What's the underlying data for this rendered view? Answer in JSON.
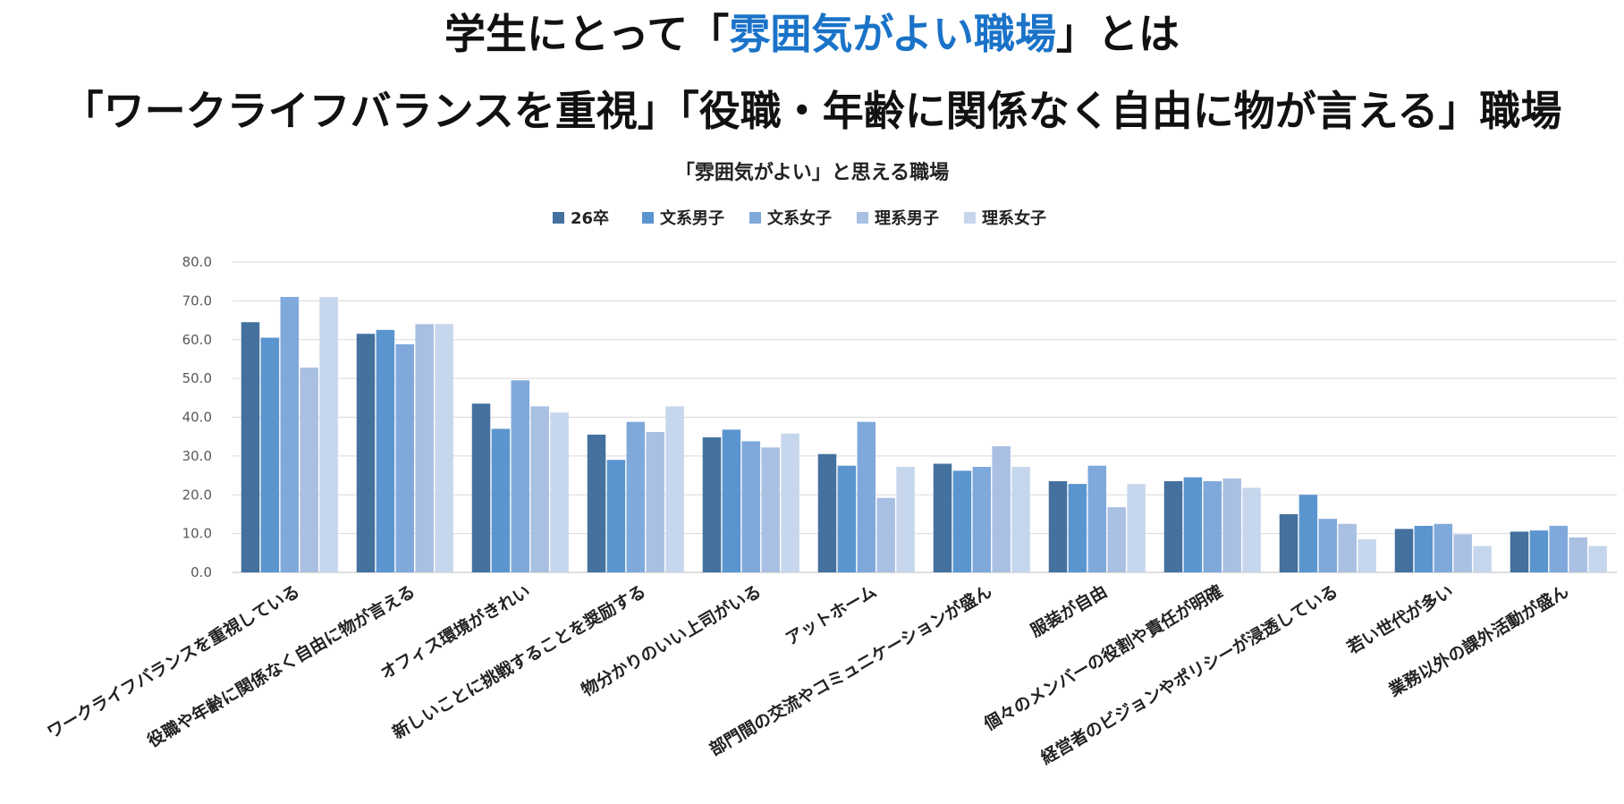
{
  "headline": {
    "line1_prefix": "学生にとって「",
    "line1_accent": "雰囲気がよい職場",
    "line1_suffix": "」とは",
    "line2": "「ワークライフバランスを重視」「役職・年齢に関係なく自由に物が言える」職場",
    "accent_color": "#1a73c8"
  },
  "chart_data": {
    "type": "bar",
    "title": "「雰囲気がよい」と思える職場",
    "ylim": [
      0,
      80
    ],
    "yticks": [
      "0.0",
      "10.0",
      "20.0",
      "30.0",
      "40.0",
      "50.0",
      "60.0",
      "70.0",
      "80.0"
    ],
    "grid": true,
    "legend_position": "top-center",
    "categories": [
      "ワークライフバランスを重視している",
      "役職や年齢に関係なく自由に物が言える",
      "オフィス環境がきれい",
      "新しいことに挑戦することを奨励する",
      "物分かりのいい上司がいる",
      "アットホーム",
      "部門間の交流やコミュニケーションが盛ん",
      "服装が自由",
      "個々のメンバーの役割や責任が明確",
      "経営者のビジョンやポリシーが浸透している",
      "若い世代が多い",
      "業務以外の課外活動が盛ん"
    ],
    "series": [
      {
        "name": "26卒",
        "color": "#44719e",
        "values": [
          64.5,
          61.5,
          43.5,
          35.5,
          34.8,
          30.5,
          28.0,
          23.5,
          23.5,
          15.0,
          11.2,
          10.5
        ]
      },
      {
        "name": "文系男子",
        "color": "#5b95cf",
        "values": [
          60.5,
          62.5,
          37.0,
          29.0,
          36.8,
          27.5,
          26.2,
          22.8,
          24.5,
          20.0,
          12.0,
          10.8
        ]
      },
      {
        "name": "文系女子",
        "color": "#7fa9db",
        "values": [
          71.0,
          58.8,
          49.5,
          38.8,
          33.8,
          38.8,
          27.2,
          27.5,
          23.5,
          13.8,
          12.5,
          12.0
        ]
      },
      {
        "name": "理系男子",
        "color": "#a9c0e3",
        "values": [
          52.8,
          64.0,
          42.8,
          36.2,
          32.2,
          19.2,
          32.5,
          16.8,
          24.2,
          12.5,
          9.8,
          9.0
        ]
      },
      {
        "name": "理系女子",
        "color": "#c6d6ec",
        "values": [
          71.0,
          64.0,
          41.2,
          42.8,
          35.8,
          27.2,
          27.2,
          22.8,
          21.8,
          8.5,
          6.8,
          6.8
        ]
      }
    ]
  }
}
